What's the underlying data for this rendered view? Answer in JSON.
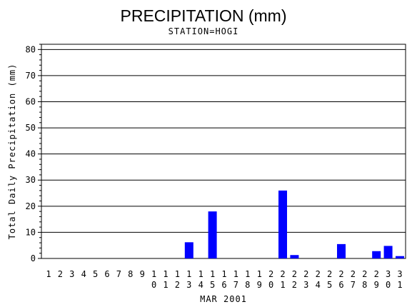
{
  "chart_data": {
    "type": "bar",
    "title": "PRECIPITATION (mm)",
    "subtitle": "STATION=HOGI",
    "xlabel": "MAR 2001",
    "ylabel": "Total Daily Precipitation (mm)",
    "ylim": [
      0,
      82
    ],
    "yticks": [
      0,
      10,
      20,
      30,
      40,
      50,
      60,
      70,
      80
    ],
    "grid": true,
    "bar_color": "#0000ff",
    "categories": [
      "1",
      "2",
      "3",
      "4",
      "5",
      "6",
      "7",
      "8",
      "9",
      "10",
      "11",
      "12",
      "13",
      "14",
      "15",
      "16",
      "17",
      "18",
      "19",
      "20",
      "21",
      "22",
      "23",
      "24",
      "25",
      "26",
      "27",
      "28",
      "29",
      "30",
      "31"
    ],
    "values": [
      0,
      0,
      0,
      0,
      0,
      0,
      0,
      0,
      0,
      0,
      0,
      0,
      6.2,
      0,
      18,
      0,
      0,
      0,
      0,
      0,
      26,
      1.3,
      0,
      0,
      0,
      5.5,
      0,
      0,
      2.8,
      4.8,
      0.9
    ]
  }
}
